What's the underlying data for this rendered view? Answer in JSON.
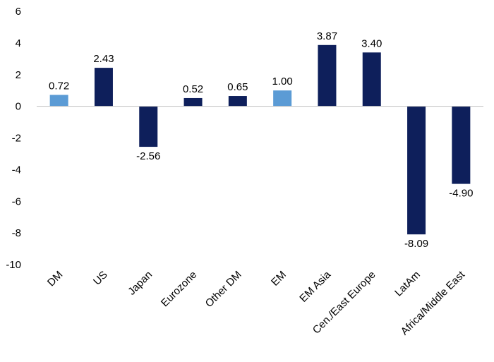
{
  "chart_data": {
    "type": "bar",
    "title": "",
    "xlabel": "",
    "ylabel": "",
    "ylim": [
      -10,
      6
    ],
    "yticks": [
      6,
      4,
      2,
      0,
      -2,
      -4,
      -6,
      -8,
      -10
    ],
    "grid": false,
    "legend": "none",
    "categories": [
      "DM",
      "US",
      "Japan",
      "Eurozone",
      "Other DM",
      "EM",
      "EM Asia",
      "Cen./East Europe",
      "LatAm",
      "Africa/Middle East"
    ],
    "values": [
      0.72,
      2.43,
      -2.56,
      0.52,
      0.65,
      1.0,
      3.87,
      3.4,
      -8.09,
      -4.9
    ],
    "value_labels": [
      "0.72",
      "2.43",
      "-2.56",
      "0.52",
      "0.65",
      "1.00",
      "3.87",
      "3.40",
      "-8.09",
      "-4.90"
    ],
    "highlighted": [
      true,
      false,
      false,
      false,
      false,
      true,
      false,
      false,
      false,
      false
    ],
    "colors": {
      "aggregate": "#5B9BD5",
      "region": "#0E1F5B",
      "axis": "#BFBFBF"
    }
  }
}
